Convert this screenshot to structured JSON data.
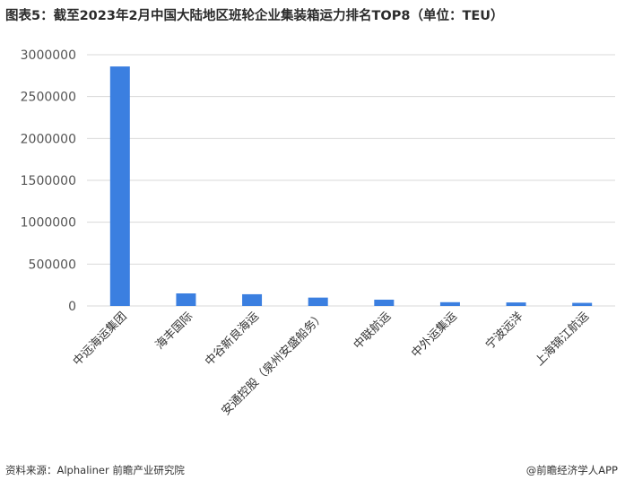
{
  "title": "图表5：截至2023年2月中国大陆地区班轮企业集装箱运力排名TOP8（单位：TEU）",
  "source": "资料来源：Alphaliner 前瞻产业研究院",
  "credit": "@前瞻经济学人APP",
  "colors": {
    "bar": "#3b7fe0",
    "grid": "#d9d9d9",
    "axis_text": "#555555"
  },
  "chart_data": {
    "type": "bar",
    "title": "图表5：截至2023年2月中国大陆地区班轮企业集装箱运力排名TOP8（单位：TEU）",
    "xlabel": "",
    "ylabel": "",
    "categories": [
      "中远海运集团",
      "海丰国际",
      "中谷新良海运",
      "安通控股（泉州安盛船务）",
      "中联航运",
      "中外运集运",
      "宁波远洋",
      "上海锦江航运"
    ],
    "values": [
      2860000,
      150000,
      140000,
      100000,
      75000,
      45000,
      42000,
      37000
    ],
    "ylim": [
      0,
      3000000
    ],
    "yticks": [
      0,
      500000,
      1000000,
      1500000,
      2000000,
      2500000,
      3000000
    ],
    "grid": true,
    "legend": "none"
  }
}
